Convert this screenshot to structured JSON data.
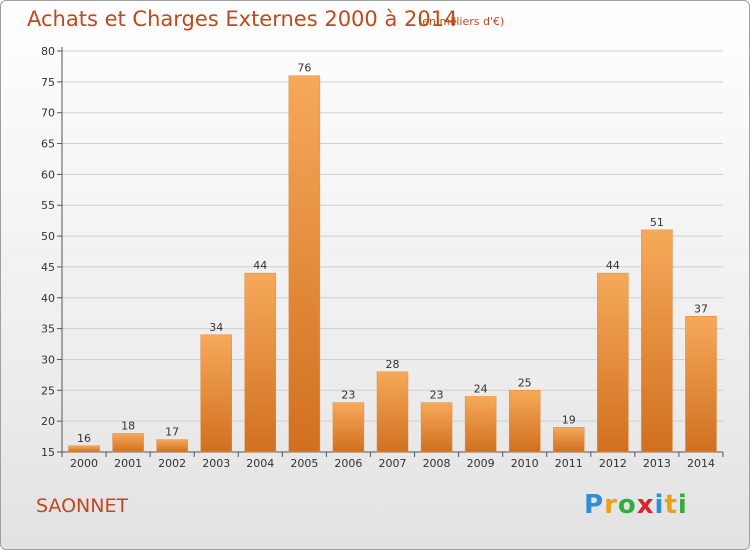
{
  "title": "Achats et Charges Externes 2000 à 2014",
  "subtitle": "(en milliers d'€)",
  "place": "SAONNET",
  "logo": {
    "letters": [
      "P",
      "r",
      "o",
      "x",
      "i",
      "t",
      "i"
    ],
    "colors": [
      "#2f8fd6",
      "#e8a21a",
      "#2fae3e",
      "#d6262f",
      "#2f8fd6",
      "#e8a21a",
      "#2fae3e"
    ]
  },
  "colors": {
    "title": "#c0481e",
    "bar_light": "#f6a95a",
    "bar_dark": "#d0701f",
    "grid": "#cfcfcf"
  },
  "chart_data": {
    "type": "bar",
    "title": "Achats et Charges Externes 2000 à 2014",
    "subtitle": "(en milliers d'€)",
    "categories": [
      "2000",
      "2001",
      "2002",
      "2003",
      "2004",
      "2005",
      "2006",
      "2007",
      "2008",
      "2009",
      "2010",
      "2011",
      "2012",
      "2013",
      "2014"
    ],
    "values": [
      16,
      18,
      17,
      34,
      44,
      76,
      23,
      28,
      23,
      24,
      25,
      19,
      44,
      51,
      37
    ],
    "ylim": [
      15,
      80
    ],
    "yticks": [
      15,
      20,
      25,
      30,
      35,
      40,
      45,
      50,
      55,
      60,
      65,
      70,
      75,
      80
    ],
    "grid": true,
    "xlabel": "",
    "ylabel": ""
  }
}
